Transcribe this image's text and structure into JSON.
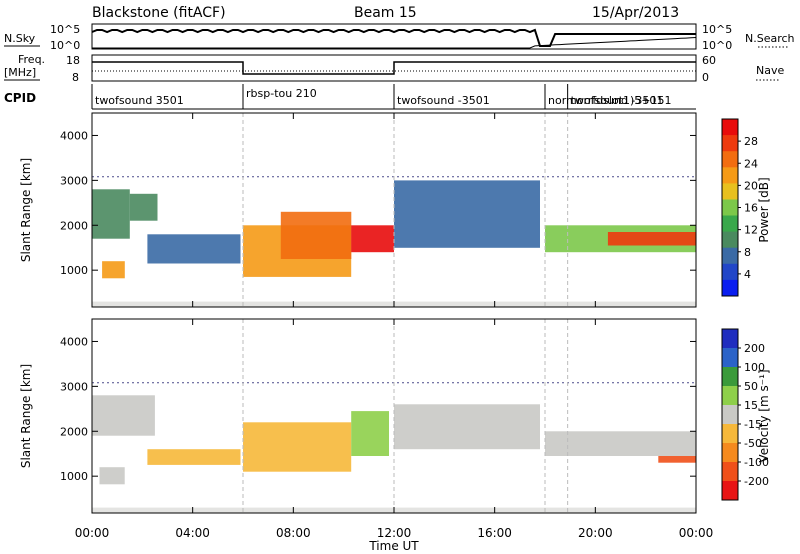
{
  "header": {
    "station": "Blackstone (fitACF)",
    "beam": "Beam 15",
    "date": "15/Apr/2013"
  },
  "panels": {
    "nsky": {
      "left_label": "N.Sky",
      "right_label": "N.Search",
      "tick_top": "10^5",
      "tick_bottom": "10^0",
      "right_tick_top": "10^5",
      "right_tick_bottom": "10^0"
    },
    "freq": {
      "left_label_line1": "Freq.",
      "left_label_line2": "[MHz]",
      "tick_top": "18",
      "tick_bottom": "8",
      "right_label": "Nave",
      "right_tick_top": "60",
      "right_tick_bottom": "0"
    },
    "cpid": {
      "label": "CPID",
      "segments": [
        {
          "name": "twofsound 3501",
          "start_h": 0.0,
          "end_h": 6.0
        },
        {
          "name": "rbsp-tou 210",
          "start_h": 6.0,
          "end_h": 12.0
        },
        {
          "name": "twofsound -3501",
          "start_h": 12.0,
          "end_h": 18.0
        },
        {
          "name": "normorrfdslot1)5+151",
          "start_h": 18.0,
          "end_h": 18.9
        },
        {
          "name": "twofsound -3501",
          "start_h": 18.9,
          "end_h": 24.0
        }
      ]
    }
  },
  "axes": {
    "xlabel": "Time UT",
    "xticks": [
      "00:00",
      "04:00",
      "08:00",
      "12:00",
      "16:00",
      "20:00",
      "00:00"
    ],
    "ylabel": "Slant Range [km]",
    "yticks": [
      "1000",
      "2000",
      "3000",
      "4000"
    ]
  },
  "colorbars": {
    "power": {
      "label": "Power [dB]",
      "ticks": [
        "4",
        "8",
        "12",
        "16",
        "20",
        "24",
        "28"
      ],
      "colors": [
        "#0a1ef0",
        "#2146c8",
        "#3a6aa5",
        "#4a8a5f",
        "#39a84b",
        "#7cc84a",
        "#e8c01e",
        "#f59a16",
        "#f26d10",
        "#ee3a0e",
        "#e80c0c"
      ]
    },
    "velocity": {
      "label": "Velocity [m s⁻¹]",
      "ticks": [
        "200",
        "100",
        "50",
        "15",
        "-15",
        "-50",
        "-100",
        "-200"
      ],
      "colors": [
        "#1f2dbf",
        "#2b63c8",
        "#3a9a3a",
        "#8ecf4a",
        "#c9c9c5",
        "#f6b83a",
        "#f58a1e",
        "#f0501a",
        "#e81414"
      ]
    }
  },
  "chart_data": [
    {
      "type": "heatmap",
      "name": "power",
      "x_unit": "hours UT",
      "y_unit": "km",
      "xlim": [
        0,
        24
      ],
      "ylim": [
        180,
        4500
      ],
      "zlim": [
        0,
        30
      ],
      "regions": [
        {
          "x0": 0.0,
          "x1": 1.5,
          "y0": 1700,
          "y1": 2800,
          "z": 10
        },
        {
          "x0": 0.4,
          "x1": 1.3,
          "y0": 820,
          "y1": 1200,
          "z": 20
        },
        {
          "x0": 1.5,
          "x1": 2.6,
          "y0": 2100,
          "y1": 2700,
          "z": 9
        },
        {
          "x0": 2.2,
          "x1": 5.9,
          "y0": 1150,
          "y1": 1800,
          "z": 8
        },
        {
          "x0": 6.0,
          "x1": 10.3,
          "y0": 850,
          "y1": 2000,
          "z": 21
        },
        {
          "x0": 7.5,
          "x1": 10.3,
          "y0": 1250,
          "y1": 2300,
          "z": 24
        },
        {
          "x0": 10.3,
          "x1": 12.0,
          "y0": 1400,
          "y1": 2000,
          "z": 28
        },
        {
          "x0": 12.0,
          "x1": 17.8,
          "y0": 1500,
          "y1": 3000,
          "z": 7
        },
        {
          "x0": 18.0,
          "x1": 24.0,
          "y0": 1400,
          "y1": 2000,
          "z": 14
        },
        {
          "x0": 20.5,
          "x1": 24.0,
          "y0": 1550,
          "y1": 1850,
          "z": 26
        }
      ]
    },
    {
      "type": "heatmap",
      "name": "velocity",
      "x_unit": "hours UT",
      "y_unit": "km",
      "xlim": [
        0,
        24
      ],
      "ylim": [
        180,
        4500
      ],
      "zlim": [
        -200,
        200
      ],
      "regions": [
        {
          "x0": 0.0,
          "x1": 2.5,
          "y0": 1900,
          "y1": 2800,
          "z": -10
        },
        {
          "x0": 0.3,
          "x1": 1.3,
          "y0": 820,
          "y1": 1200,
          "z": 0
        },
        {
          "x0": 2.2,
          "x1": 5.9,
          "y0": 1250,
          "y1": 1600,
          "z": -40
        },
        {
          "x0": 6.0,
          "x1": 10.3,
          "y0": 1100,
          "y1": 2200,
          "z": -60
        },
        {
          "x0": 10.3,
          "x1": 11.8,
          "y0": 1450,
          "y1": 2450,
          "z": 40
        },
        {
          "x0": 12.0,
          "x1": 17.8,
          "y0": 1600,
          "y1": 2600,
          "z": -10
        },
        {
          "x0": 18.0,
          "x1": 24.0,
          "y0": 1450,
          "y1": 2000,
          "z": -5
        },
        {
          "x0": 22.5,
          "x1": 24.0,
          "y0": 1300,
          "y1": 1450,
          "z": -150
        }
      ]
    }
  ]
}
